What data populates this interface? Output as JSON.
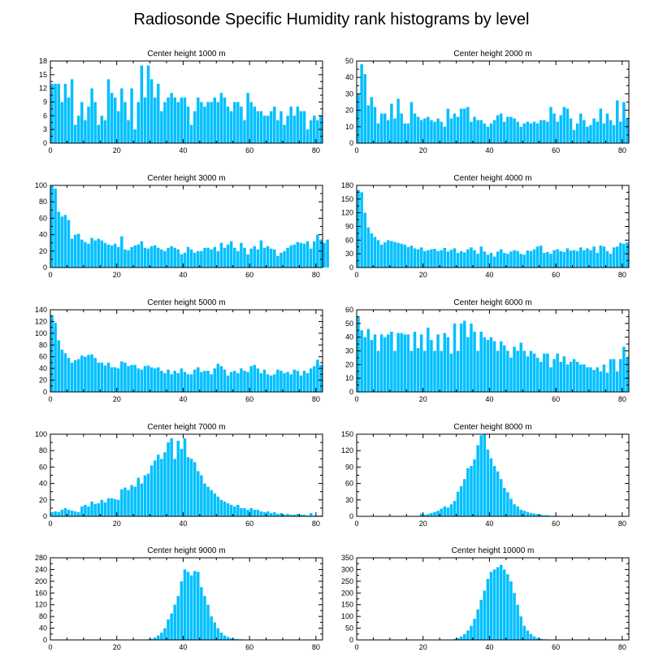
{
  "title": "Radiosonde Specific Humidity rank histograms by level",
  "bar_color": "#00BFFF",
  "chart_data": [
    {
      "type": "bar",
      "title": "Center height 1000 m",
      "xlim": [
        0,
        82
      ],
      "ylim": [
        0,
        18
      ],
      "xticks": [
        0,
        20,
        40,
        60,
        80
      ],
      "yticks": [
        0,
        3,
        6,
        9,
        12,
        15,
        18
      ],
      "values": [
        13,
        13,
        13,
        9,
        13,
        10,
        14,
        4,
        6,
        9,
        5,
        8,
        12,
        9,
        4,
        6,
        5,
        14,
        11,
        10,
        7,
        12,
        9,
        5,
        12,
        3,
        9,
        17,
        10,
        17,
        14,
        10,
        13,
        7,
        9,
        10,
        11,
        10,
        9,
        10,
        10,
        8,
        4,
        7,
        10,
        9,
        8,
        9,
        9,
        10,
        9,
        11,
        10,
        8,
        7,
        9,
        9,
        8,
        5,
        11,
        9,
        8,
        7,
        7,
        6,
        6,
        7,
        8,
        5,
        7,
        4,
        6,
        8,
        6,
        8,
        7,
        7,
        3,
        5,
        6,
        5,
        6
      ]
    },
    {
      "type": "bar",
      "title": "Center height 2000 m",
      "xlim": [
        0,
        82
      ],
      "ylim": [
        0,
        50
      ],
      "xticks": [
        0,
        20,
        40,
        60,
        80
      ],
      "yticks": [
        0,
        10,
        20,
        30,
        40,
        50
      ],
      "values": [
        30,
        48,
        42,
        23,
        28,
        22,
        12,
        18,
        18,
        14,
        24,
        15,
        27,
        18,
        12,
        12,
        25,
        18,
        16,
        14,
        15,
        16,
        14,
        13,
        15,
        13,
        10,
        21,
        15,
        18,
        16,
        21,
        21,
        22,
        13,
        16,
        14,
        14,
        12,
        10,
        12,
        14,
        17,
        18,
        13,
        16,
        16,
        15,
        13,
        10,
        12,
        13,
        12,
        13,
        12,
        14,
        14,
        13,
        22,
        18,
        13,
        17,
        22,
        21,
        15,
        8,
        12,
        18,
        14,
        10,
        11,
        15,
        13,
        21,
        12,
        18,
        14,
        11,
        26,
        13,
        25,
        15
      ]
    },
    {
      "type": "bar",
      "title": "Center height 3000 m",
      "xlim": [
        0,
        82
      ],
      "ylim": [
        0,
        100
      ],
      "xticks": [
        0,
        20,
        40,
        60,
        80
      ],
      "yticks": [
        0,
        20,
        40,
        60,
        80,
        100
      ],
      "values": [
        100,
        96,
        68,
        62,
        64,
        58,
        35,
        40,
        41,
        34,
        31,
        29,
        36,
        33,
        35,
        33,
        30,
        28,
        27,
        29,
        25,
        38,
        22,
        21,
        25,
        27,
        28,
        32,
        24,
        23,
        26,
        27,
        24,
        22,
        20,
        24,
        26,
        24,
        22,
        16,
        18,
        25,
        22,
        18,
        20,
        20,
        24,
        24,
        22,
        25,
        20,
        30,
        24,
        28,
        32,
        24,
        20,
        30,
        24,
        16,
        23,
        26,
        22,
        33,
        24,
        26,
        23,
        22,
        14,
        18,
        20,
        24,
        27,
        28,
        31,
        30,
        29,
        32,
        23,
        32,
        40,
        34,
        30,
        34
      ]
    },
    {
      "type": "bar",
      "title": "Center height 4000 m",
      "xlim": [
        0,
        82
      ],
      "ylim": [
        0,
        180
      ],
      "xticks": [
        0,
        20,
        40,
        60,
        80
      ],
      "yticks": [
        0,
        30,
        60,
        90,
        120,
        150,
        180
      ],
      "values": [
        170,
        165,
        120,
        88,
        75,
        67,
        60,
        50,
        55,
        60,
        58,
        56,
        54,
        52,
        50,
        45,
        48,
        42,
        40,
        44,
        36,
        38,
        40,
        41,
        36,
        38,
        43,
        35,
        39,
        42,
        32,
        36,
        33,
        40,
        44,
        38,
        30,
        46,
        35,
        28,
        32,
        24,
        35,
        40,
        32,
        30,
        35,
        38,
        36,
        30,
        28,
        37,
        36,
        40,
        46,
        48,
        32,
        34,
        30,
        38,
        40,
        36,
        34,
        42,
        37,
        38,
        36,
        44,
        38,
        42,
        38,
        46,
        32,
        48,
        46,
        36,
        30,
        44,
        46,
        54,
        52,
        55
      ]
    },
    {
      "type": "bar",
      "title": "Center height 5000 m",
      "xlim": [
        0,
        82
      ],
      "ylim": [
        0,
        140
      ],
      "xticks": [
        0,
        20,
        40,
        60,
        80
      ],
      "yticks": [
        0,
        20,
        40,
        60,
        80,
        100,
        120,
        140
      ],
      "values": [
        130,
        118,
        88,
        72,
        66,
        58,
        50,
        54,
        56,
        62,
        60,
        63,
        64,
        58,
        50,
        50,
        45,
        50,
        42,
        42,
        40,
        52,
        50,
        44,
        46,
        46,
        40,
        38,
        44,
        45,
        42,
        40,
        42,
        36,
        32,
        38,
        30,
        36,
        32,
        40,
        34,
        30,
        30,
        38,
        42,
        34,
        36,
        36,
        30,
        40,
        48,
        44,
        38,
        28,
        34,
        36,
        32,
        40,
        36,
        34,
        44,
        46,
        40,
        32,
        38,
        30,
        28,
        30,
        38,
        36,
        32,
        34,
        30,
        38,
        36,
        28,
        36,
        32,
        40,
        44,
        55,
        46
      ]
    },
    {
      "type": "bar",
      "title": "Center height 6000 m",
      "xlim": [
        0,
        82
      ],
      "ylim": [
        0,
        60
      ],
      "xticks": [
        0,
        20,
        40,
        60,
        80
      ],
      "yticks": [
        0,
        10,
        20,
        30,
        40,
        50,
        60
      ],
      "values": [
        55,
        45,
        40,
        46,
        38,
        42,
        30,
        42,
        40,
        42,
        44,
        30,
        43,
        43,
        42,
        42,
        30,
        44,
        32,
        42,
        30,
        47,
        38,
        30,
        42,
        30,
        43,
        40,
        28,
        50,
        30,
        50,
        52,
        40,
        50,
        44,
        30,
        44,
        40,
        38,
        40,
        37,
        30,
        37,
        34,
        30,
        25,
        33,
        30,
        36,
        30,
        26,
        30,
        28,
        25,
        22,
        28,
        28,
        18,
        24,
        28,
        22,
        26,
        20,
        22,
        24,
        22,
        20,
        20,
        18,
        18,
        16,
        18,
        15,
        20,
        14,
        24,
        24,
        15,
        24,
        33,
        25
      ]
    },
    {
      "type": "bar",
      "title": "Center height 7000 m",
      "xlim": [
        0,
        82
      ],
      "ylim": [
        0,
        100
      ],
      "xticks": [
        0,
        20,
        40,
        60,
        80
      ],
      "yticks": [
        0,
        20,
        40,
        60,
        80,
        100
      ],
      "values": [
        5,
        6,
        5,
        8,
        10,
        8,
        7,
        6,
        5,
        12,
        14,
        12,
        18,
        15,
        16,
        20,
        17,
        22,
        22,
        21,
        20,
        33,
        35,
        32,
        38,
        36,
        47,
        40,
        50,
        52,
        62,
        68,
        75,
        70,
        78,
        90,
        95,
        70,
        92,
        82,
        95,
        72,
        70,
        66,
        55,
        50,
        40,
        36,
        32,
        28,
        24,
        20,
        18,
        16,
        14,
        12,
        14,
        10,
        10,
        8,
        10,
        8,
        8,
        6,
        5,
        6,
        4,
        5,
        3,
        4,
        2,
        3,
        2,
        2,
        3,
        2,
        2,
        1,
        4,
        1,
        1,
        1
      ]
    },
    {
      "type": "bar",
      "title": "Center height 8000 m",
      "xlim": [
        0,
        82
      ],
      "ylim": [
        0,
        150
      ],
      "xticks": [
        0,
        20,
        40,
        60,
        80
      ],
      "yticks": [
        0,
        30,
        60,
        90,
        120,
        150
      ],
      "values": [
        0,
        0,
        0,
        0,
        0,
        0,
        0,
        0,
        0,
        0,
        0,
        0,
        0,
        0,
        0,
        0,
        0,
        0,
        0,
        5,
        3,
        4,
        6,
        8,
        10,
        14,
        18,
        16,
        22,
        28,
        45,
        55,
        68,
        88,
        92,
        104,
        130,
        148,
        150,
        122,
        106,
        92,
        82,
        68,
        52,
        44,
        32,
        22,
        18,
        12,
        10,
        8,
        6,
        5,
        4,
        3,
        2,
        2,
        1,
        1,
        1,
        0,
        0,
        0,
        0,
        0,
        0,
        0,
        0,
        0,
        0,
        0,
        0,
        0,
        0,
        0,
        0,
        0,
        0,
        0,
        0,
        0
      ]
    },
    {
      "type": "bar",
      "title": "Center height 9000 m",
      "xlim": [
        0,
        82
      ],
      "ylim": [
        0,
        280
      ],
      "xticks": [
        0,
        20,
        40,
        60,
        80
      ],
      "yticks": [
        0,
        40,
        80,
        120,
        160,
        200,
        240,
        280
      ],
      "values": [
        0,
        0,
        0,
        0,
        0,
        0,
        0,
        0,
        0,
        0,
        0,
        0,
        0,
        0,
        0,
        0,
        0,
        0,
        0,
        0,
        0,
        0,
        0,
        0,
        0,
        0,
        0,
        0,
        1,
        2,
        4,
        8,
        15,
        25,
        40,
        70,
        90,
        120,
        150,
        200,
        240,
        232,
        220,
        235,
        232,
        180,
        150,
        120,
        80,
        60,
        40,
        25,
        15,
        10,
        6,
        4,
        3,
        2,
        1,
        1,
        0,
        0,
        0,
        0,
        0,
        0,
        0,
        0,
        0,
        0,
        0,
        0,
        0,
        0,
        0,
        0,
        0,
        0,
        0,
        0,
        0,
        0
      ]
    },
    {
      "type": "bar",
      "title": "Center height 10000 m",
      "xlim": [
        0,
        82
      ],
      "ylim": [
        0,
        350
      ],
      "xticks": [
        0,
        20,
        40,
        60,
        80
      ],
      "yticks": [
        0,
        50,
        100,
        150,
        200,
        250,
        300,
        350
      ],
      "values": [
        0,
        0,
        0,
        0,
        0,
        0,
        0,
        0,
        0,
        0,
        0,
        0,
        0,
        0,
        0,
        0,
        0,
        0,
        0,
        0,
        0,
        0,
        0,
        0,
        0,
        0,
        0,
        1,
        2,
        4,
        8,
        15,
        25,
        40,
        60,
        90,
        130,
        170,
        210,
        260,
        290,
        300,
        310,
        320,
        300,
        280,
        250,
        200,
        150,
        100,
        60,
        40,
        25,
        15,
        8,
        5,
        3,
        2,
        1,
        1,
        0,
        0,
        0,
        0,
        0,
        0,
        0,
        0,
        0,
        0,
        0,
        0,
        0,
        0,
        0,
        0,
        0,
        0,
        0,
        0,
        0,
        0
      ]
    }
  ]
}
